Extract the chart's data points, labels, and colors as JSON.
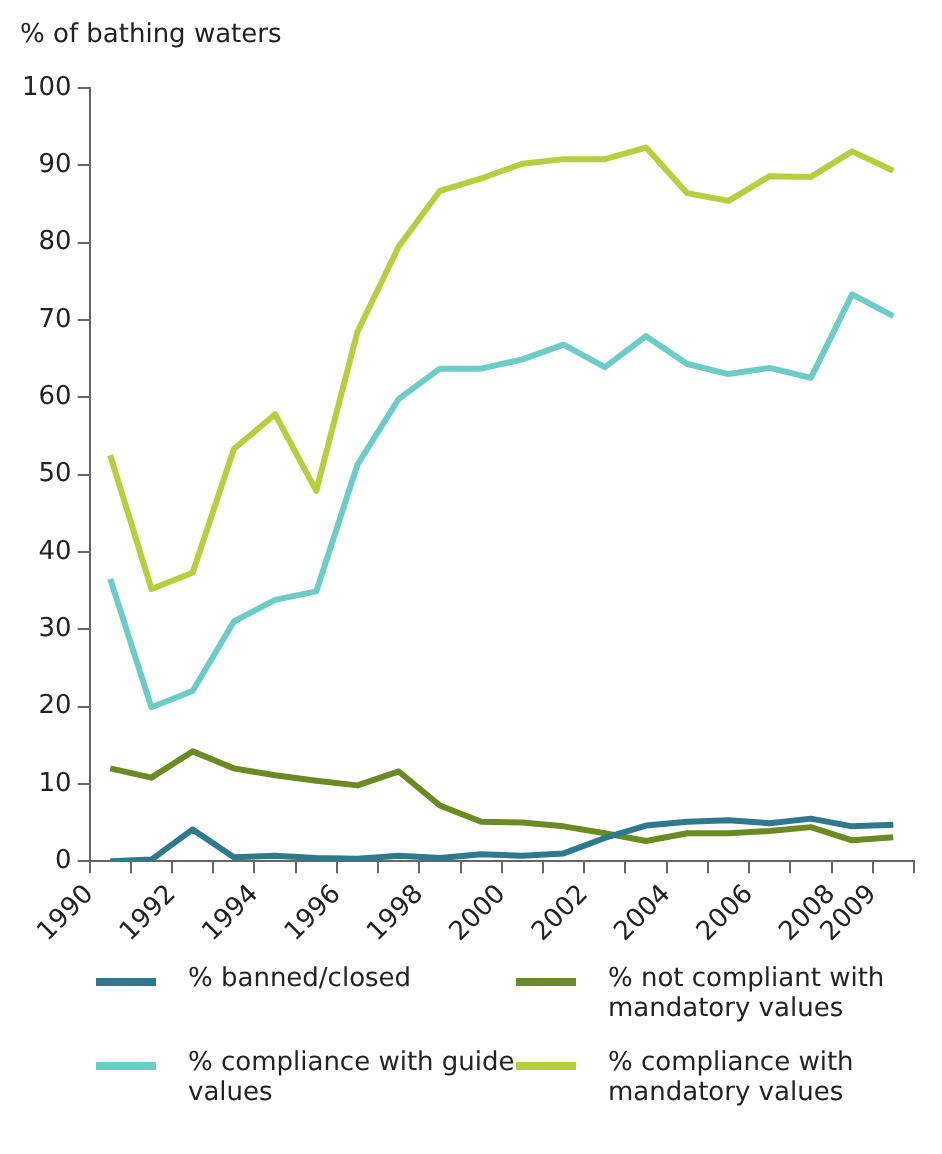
{
  "chart_data": {
    "type": "line",
    "ylabel": "% of bathing waters",
    "x": [
      1990.5,
      1991.5,
      1992.5,
      1993.5,
      1994.5,
      1995.5,
      1996.5,
      1997.5,
      1998.5,
      1999.5,
      2000.5,
      2001.5,
      2002.5,
      2003.5,
      2004.5,
      2005.5,
      2006.5,
      2007.5,
      2008.5,
      2009.5
    ],
    "series": [
      {
        "name": "% banned/closed",
        "color": "#2e7a8c",
        "values": [
          0,
          0.2,
          4.1,
          0.5,
          0.7,
          0.4,
          0.3,
          0.7,
          0.4,
          0.9,
          0.7,
          1.0,
          3.0,
          4.6,
          5.1,
          5.3,
          4.9,
          5.5,
          4.5,
          4.7
        ]
      },
      {
        "name": "% not compliant with mandatory values",
        "color": "#6b8a23",
        "values": [
          12.0,
          10.8,
          14.2,
          12.0,
          11.1,
          10.4,
          9.8,
          11.6,
          7.2,
          5.1,
          5.0,
          4.5,
          3.6,
          2.6,
          3.6,
          3.6,
          3.9,
          4.4,
          2.7,
          3.1
        ]
      },
      {
        "name": "% compliance with guide values",
        "color": "#6cccc8",
        "values": [
          36.5,
          19.9,
          22.0,
          31.0,
          33.8,
          34.9,
          51.3,
          59.8,
          63.7,
          63.7,
          64.9,
          66.8,
          63.9,
          67.9,
          64.3,
          63.0,
          63.8,
          62.5,
          73.3,
          70.5
        ]
      },
      {
        "name": "% compliance with mandatory values",
        "color": "#b5cf3f",
        "values": [
          52.5,
          35.2,
          37.3,
          53.3,
          57.8,
          47.9,
          68.5,
          79.5,
          86.7,
          88.3,
          90.2,
          90.8,
          90.8,
          92.3,
          86.4,
          85.4,
          88.6,
          88.5,
          91.8,
          89.3
        ]
      }
    ],
    "xlim": [
      1990,
      2010
    ],
    "xticks": [
      1990,
      {
        "value": 1991,
        "label": null
      },
      1992,
      {
        "value": 1993,
        "label": null
      },
      1994,
      {
        "value": 1995,
        "label": null
      },
      1996,
      {
        "value": 1997,
        "label": null
      },
      1998,
      {
        "value": 1999,
        "label": null
      },
      2000,
      {
        "value": 2001,
        "label": null
      },
      2002,
      {
        "value": 2003,
        "label": null
      },
      2004,
      {
        "value": 2005,
        "label": null
      },
      2006,
      {
        "value": 2007,
        "label": null
      },
      2008,
      2009,
      {
        "value": 2010,
        "label": null
      }
    ],
    "ylim": [
      0,
      100
    ],
    "yticks": [
      0,
      10,
      20,
      30,
      40,
      50,
      60,
      70,
      80,
      90,
      100
    ],
    "grid": false,
    "legend": "bottom",
    "marker": "none",
    "line_style": "solid"
  }
}
